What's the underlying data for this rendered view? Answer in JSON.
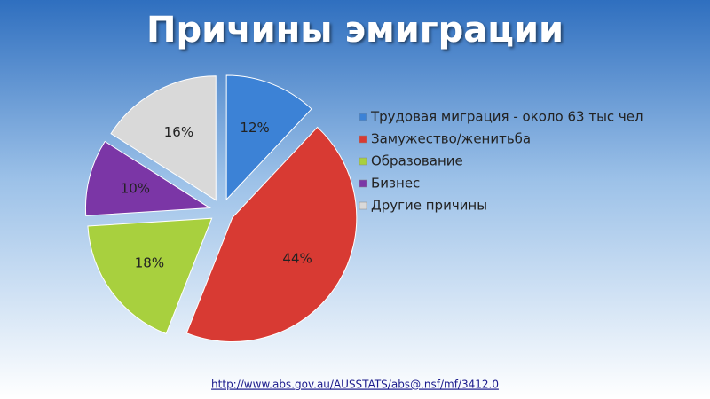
{
  "chart_data": {
    "type": "pie",
    "title": "Причины эмиграции",
    "categories": [
      "Трудовая миграция - около 63 тыс чел",
      "Замужество/женитьба",
      "Образование",
      "Бизнес",
      "Другие причины"
    ],
    "values": [
      12,
      44,
      18,
      10,
      16
    ],
    "value_labels": [
      "12%",
      "44%",
      "18%",
      "10%",
      "16%"
    ],
    "colors": [
      "#3c82d6",
      "#d83a33",
      "#a8d03e",
      "#7b36a6",
      "#d9d9d9"
    ],
    "source": "http://www.abs.gov.au/AUSSTATS/abs@.nsf/mf/3412.0"
  }
}
